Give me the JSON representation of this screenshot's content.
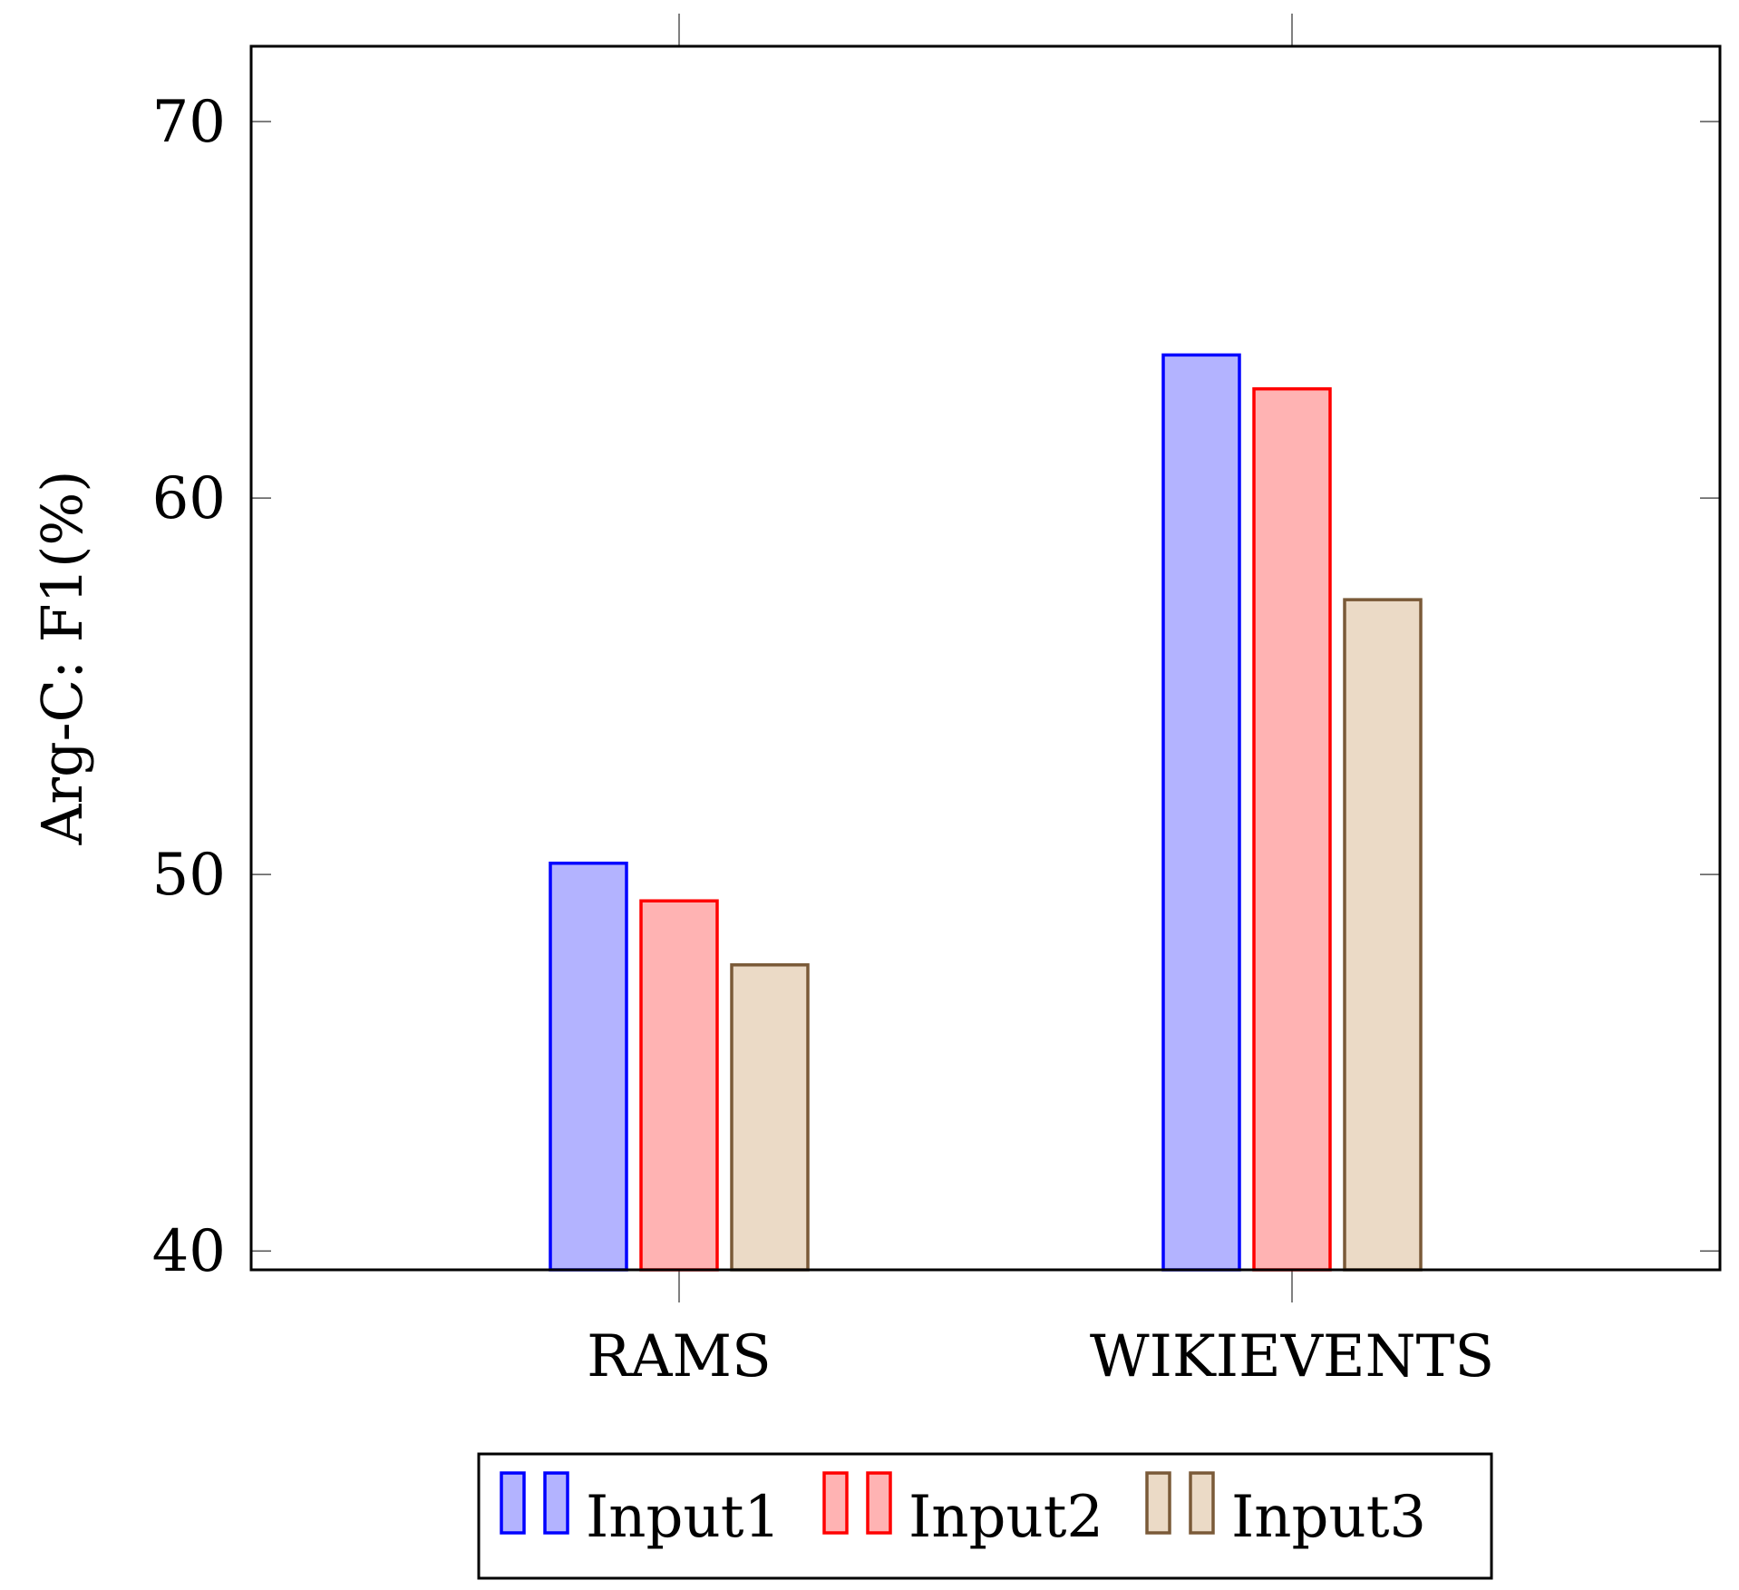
{
  "chart_data": {
    "type": "bar",
    "title": "",
    "xlabel": "",
    "ylabel": "Arg-C: F1(%)",
    "categories": [
      "RAMS",
      "WIKIEVENTS"
    ],
    "series": [
      {
        "name": "Input1",
        "values": [
          50.3,
          63.8
        ],
        "fill": "#b3b3ff",
        "stroke": "#0000ff"
      },
      {
        "name": "Input2",
        "values": [
          49.3,
          62.9
        ],
        "fill": "#ffb3b3",
        "stroke": "#ff0000"
      },
      {
        "name": "Input3",
        "values": [
          47.6,
          57.3
        ],
        "fill": "#ebdac6",
        "stroke": "#7a5a38"
      }
    ],
    "ylim": [
      39.5,
      72
    ],
    "yticks": [
      "40",
      "50",
      "60",
      "70"
    ],
    "grid": false,
    "legend_position": "bottom-center"
  }
}
